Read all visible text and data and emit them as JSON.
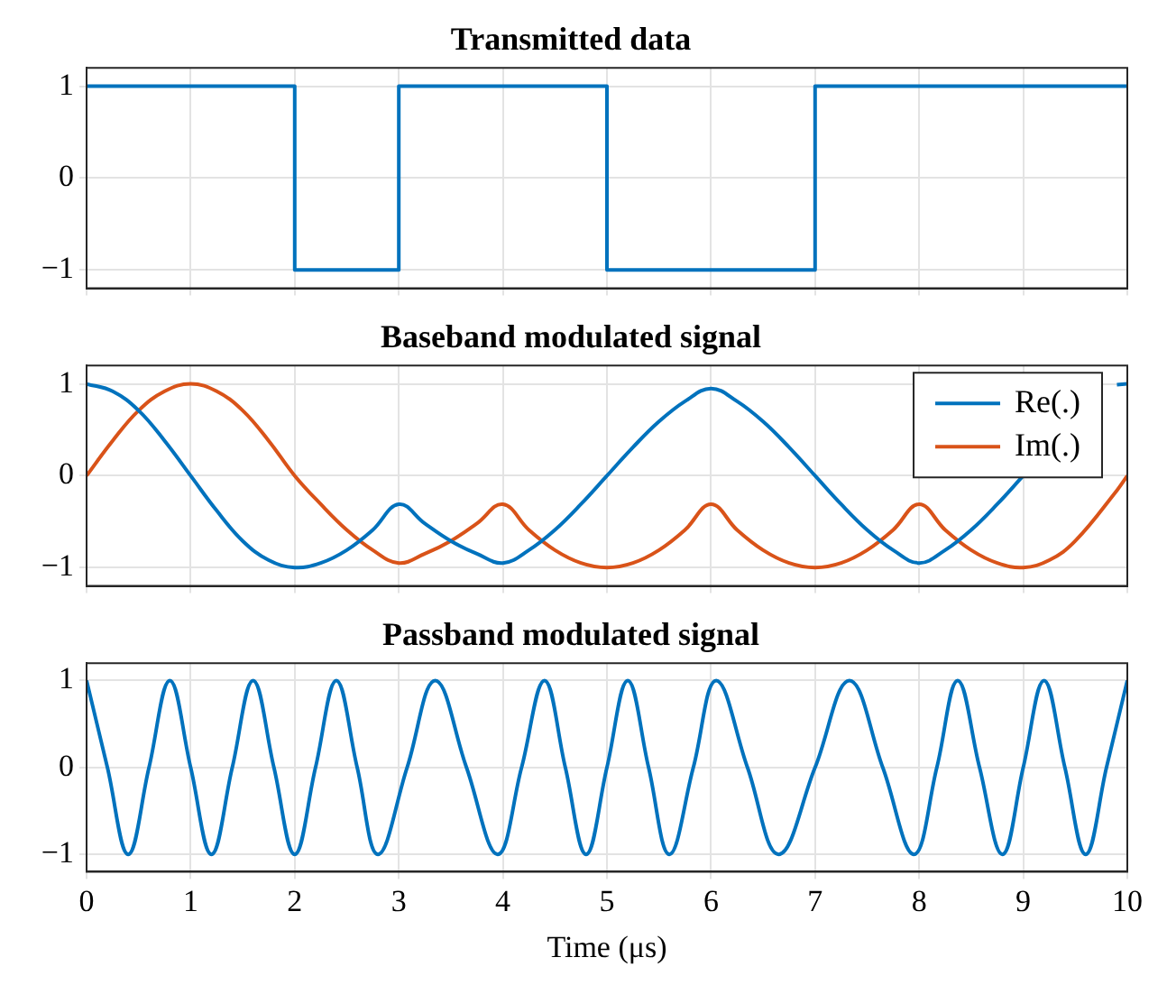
{
  "chart_data": [
    {
      "type": "step",
      "title": "Transmitted data",
      "x": [
        0,
        2,
        3,
        5,
        7,
        10
      ],
      "series": [
        {
          "color": "#0072bd",
          "values": [
            1,
            -1,
            1,
            -1,
            1,
            1
          ]
        }
      ],
      "xlim": [
        0,
        10
      ],
      "xticks": [
        0,
        1,
        2,
        3,
        4,
        5,
        6,
        7,
        8,
        9,
        10
      ],
      "ylim": [
        -1.2,
        1.2
      ],
      "yticks": [
        -1,
        0,
        1
      ],
      "grid": true,
      "tick_labels": "y",
      "marker": "none"
    },
    {
      "type": "line",
      "title": "Baseband modulated signal",
      "x": [
        0,
        0.25,
        0.5,
        0.75,
        1,
        1.25,
        1.5,
        1.75,
        2,
        2.25,
        2.5,
        2.75,
        3,
        3.25,
        3.5,
        3.75,
        4,
        4.25,
        4.5,
        4.75,
        5,
        5.25,
        5.5,
        5.75,
        6,
        6.25,
        6.5,
        6.75,
        7,
        7.25,
        7.5,
        7.75,
        8,
        8.25,
        8.5,
        8.75,
        9,
        9.25,
        9.5,
        9.9,
        10
      ],
      "series": [
        {
          "name": "Re(.)",
          "color": "#0072bd",
          "values": [
            1,
            0.92,
            0.71,
            0.38,
            0,
            -0.38,
            -0.71,
            -0.92,
            -1,
            -0.95,
            -0.81,
            -0.59,
            -0.31,
            -0.52,
            -0.71,
            -0.85,
            -0.95,
            -0.81,
            -0.59,
            -0.31,
            0,
            0.31,
            0.59,
            0.81,
            0.95,
            0.81,
            0.59,
            0.31,
            0,
            -0.31,
            -0.59,
            -0.81,
            -0.95,
            -0.81,
            -0.59,
            -0.31,
            0,
            null,
            null,
            0.99,
            1
          ]
        },
        {
          "name": "Im(.)",
          "color": "#d95319",
          "values": [
            0,
            0.38,
            0.71,
            0.92,
            1,
            0.92,
            0.71,
            0.38,
            0,
            -0.31,
            -0.59,
            -0.81,
            -0.95,
            -0.85,
            -0.71,
            -0.52,
            -0.31,
            -0.59,
            -0.81,
            -0.95,
            -1,
            -0.95,
            -0.81,
            -0.59,
            -0.31,
            -0.59,
            -0.81,
            -0.95,
            -1,
            -0.95,
            -0.81,
            -0.59,
            -0.31,
            -0.59,
            -0.81,
            -0.95,
            -1,
            -0.92,
            -0.71,
            -0.16,
            0
          ]
        }
      ],
      "xlim": [
        0,
        10
      ],
      "xticks": [
        0,
        1,
        2,
        3,
        4,
        5,
        6,
        7,
        8,
        9,
        10
      ],
      "ylim": [
        -1.2,
        1.2
      ],
      "yticks": [
        -1,
        0,
        1
      ],
      "grid": true,
      "tick_labels": "y",
      "legend": "top right",
      "marker": "none"
    },
    {
      "type": "line",
      "title": "Passband modulated signal",
      "xlabel": "Time (μs)",
      "x": [
        0,
        0.2,
        0.4,
        0.6,
        0.8,
        1.0,
        1.2,
        1.4,
        1.6,
        1.8,
        2.0,
        2.2,
        2.4,
        2.6,
        2.8,
        3.08,
        3.35,
        3.65,
        3.95,
        4.18,
        4.4,
        4.6,
        4.8,
        5.0,
        5.2,
        5.4,
        5.6,
        5.83,
        6.05,
        6.35,
        6.65,
        7.0,
        7.33,
        7.65,
        7.95,
        8.17,
        8.37,
        8.58,
        8.8,
        9.0,
        9.2,
        9.4,
        9.6,
        9.8,
        10
      ],
      "series": [
        {
          "color": "#0072bd",
          "values": [
            1,
            0,
            -1,
            0,
            1,
            0,
            -1,
            0,
            1,
            0,
            -1,
            0,
            1,
            0,
            -1,
            0,
            1,
            0,
            -1,
            0,
            1,
            0,
            -1,
            0,
            1,
            0,
            -1,
            0,
            1,
            0,
            -1,
            0,
            1,
            0,
            -1,
            0,
            1,
            0,
            -1,
            0,
            1,
            0,
            -1,
            0,
            1
          ]
        }
      ],
      "xlim": [
        0,
        10
      ],
      "xticks": [
        0,
        1,
        2,
        3,
        4,
        5,
        6,
        7,
        8,
        9,
        10
      ],
      "ylim": [
        -1.2,
        1.2
      ],
      "yticks": [
        -1,
        0,
        1
      ],
      "grid": true,
      "marker": "none"
    }
  ]
}
